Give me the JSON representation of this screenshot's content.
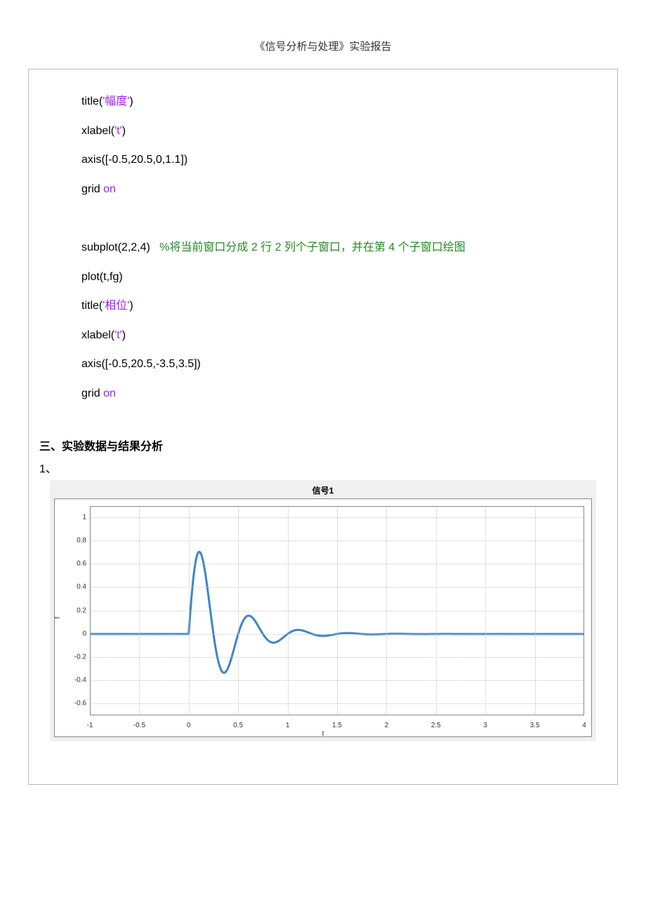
{
  "doc": {
    "header": "《信号分析与处理》实验报告",
    "section_heading": "三、实验数据与结果分析",
    "item1": "1、"
  },
  "code": {
    "l1a": "title(",
    "l1b": "'幅度'",
    "l1c": ")",
    "l2a": "xlabel(",
    "l2b": "'t'",
    "l2c": ")",
    "l3": "axis([-0.5,20.5,0,1.1])",
    "l4a": "grid ",
    "l4b": "on",
    "blank": " ",
    "l5a": "subplot(2,2,4)   ",
    "l5b": "%将当前窗口分成 2 行 2 列个子窗口，并在第 4 个子窗口绘图",
    "l6": "plot(t,fg)",
    "l7a": "title(",
    "l7b": "'相位'",
    "l7c": ")",
    "l8a": "xlabel(",
    "l8b": "'t'",
    "l8c": ")",
    "l9": "axis([-0.5,20.5,-3.5,3.5])",
    "l10a": "grid ",
    "l10b": "on"
  },
  "chart": {
    "type": "line",
    "title": "信号1",
    "xlabel": "t",
    "ylabel": "f",
    "xlim": [
      -1,
      4
    ],
    "ylim": [
      -0.7,
      1.1
    ],
    "xtick_step": 0.5,
    "ytick_step": 0.2,
    "xticks": [
      -1,
      -0.5,
      0,
      0.5,
      1,
      1.5,
      2,
      2.5,
      3,
      3.5,
      4
    ],
    "yticks": [
      -0.6,
      -0.4,
      -0.2,
      0,
      0.2,
      0.4,
      0.6,
      0.8,
      1
    ],
    "background_color": "#ffffff",
    "figure_bg": "#f0f0f0",
    "grid_color": "#c4c4c4",
    "axis_color": "#888888",
    "line_color": "#3d85c6",
    "line_width": 1.2,
    "title_fontsize": 12,
    "label_fontsize": 10
  }
}
